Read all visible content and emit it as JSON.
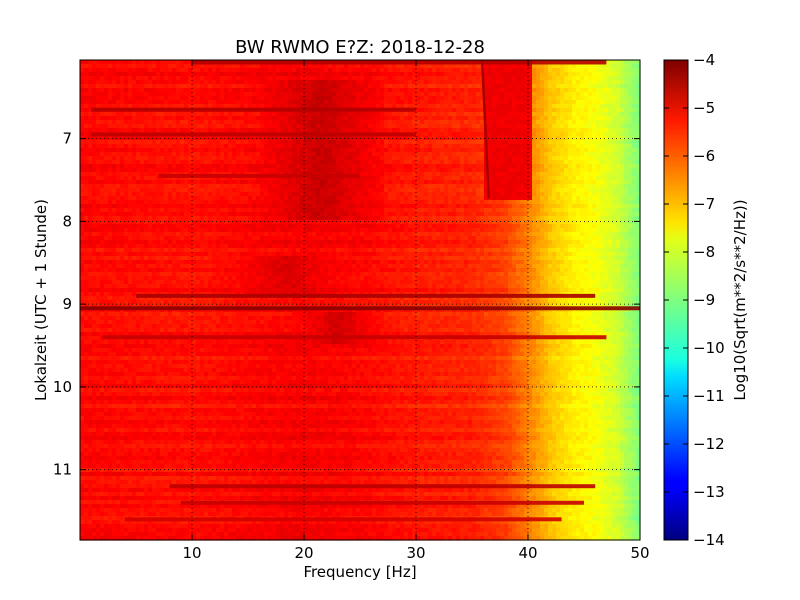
{
  "chart_data": {
    "type": "heatmap",
    "title": "BW RWMO E?Z: 2018-12-28",
    "xlabel": "Frequency [Hz]",
    "ylabel": "Lokalzeit (UTC + 1 Stunde)",
    "xlim": [
      0,
      50
    ],
    "ylim": [
      11.85,
      6.05
    ],
    "x_ticks": [
      10,
      20,
      30,
      40,
      50
    ],
    "y_ticks": [
      7,
      8,
      9,
      10,
      11
    ],
    "grid": true,
    "colorbar": {
      "label": "Log10(Sqrt(m**2/s**2/Hz))",
      "range": [
        -14,
        -4
      ],
      "ticks": [
        -4,
        -5,
        -6,
        -7,
        -8,
        -9,
        -10,
        -11,
        -12,
        -13,
        -14
      ],
      "tick_labels": [
        "−4",
        "−5",
        "−6",
        "−7",
        "−8",
        "−9",
        "−10",
        "−11",
        "−12",
        "−13",
        "−14"
      ],
      "colormap": "jet"
    },
    "background_profile": [
      {
        "freq": 0,
        "value": -5.3
      },
      {
        "freq": 10,
        "value": -5.4
      },
      {
        "freq": 20,
        "value": -5.2
      },
      {
        "freq": 25,
        "value": -5.3
      },
      {
        "freq": 30,
        "value": -5.5
      },
      {
        "freq": 35,
        "value": -5.6
      },
      {
        "freq": 38,
        "value": -5.9
      },
      {
        "freq": 40,
        "value": -6.5
      },
      {
        "freq": 42,
        "value": -7.2
      },
      {
        "freq": 44,
        "value": -7.6
      },
      {
        "freq": 46,
        "value": -7.8
      },
      {
        "freq": 48,
        "value": -8.2
      },
      {
        "freq": 50,
        "value": -9.0
      }
    ],
    "strong_regions": [
      {
        "f_min": 16,
        "f_max": 27,
        "t_start": 6.3,
        "t_end": 8.0,
        "value": -4.7
      },
      {
        "f_min": 19,
        "f_max": 27,
        "t_start": 9.1,
        "t_end": 9.5,
        "value": -4.8
      },
      {
        "f_min": 12,
        "f_max": 25,
        "t_start": 8.4,
        "t_end": 8.9,
        "value": -4.9
      }
    ],
    "strong_bands": [
      {
        "time": 6.08,
        "f_min": 10,
        "f_max": 47,
        "value": -4.5
      },
      {
        "time": 6.65,
        "f_min": 1,
        "f_max": 30,
        "value": -4.5
      },
      {
        "time": 6.95,
        "f_min": 1,
        "f_max": 30,
        "value": -4.6
      },
      {
        "time": 7.45,
        "f_min": 7,
        "f_max": 25,
        "value": -4.7
      },
      {
        "time": 8.9,
        "f_min": 5,
        "f_max": 46,
        "value": -4.4
      },
      {
        "time": 9.05,
        "f_min": 0,
        "f_max": 50,
        "value": -4.1
      },
      {
        "time": 9.4,
        "f_min": 2,
        "f_max": 47,
        "value": -4.7
      },
      {
        "time": 11.2,
        "f_min": 8,
        "f_max": 46,
        "value": -4.6
      },
      {
        "time": 11.4,
        "f_min": 9,
        "f_max": 45,
        "value": -4.7
      },
      {
        "time": 11.6,
        "f_min": 4,
        "f_max": 43,
        "value": -4.8
      }
    ],
    "tonal_line": {
      "f_start": 35.9,
      "t_start": 6.05,
      "f_end": 36.5,
      "t_end": 7.72,
      "value": -4.4
    },
    "tonal_patch": {
      "f_min": 36,
      "f_max": 40.5,
      "t_start": 6.05,
      "t_end": 7.72,
      "value": -5.1
    }
  }
}
